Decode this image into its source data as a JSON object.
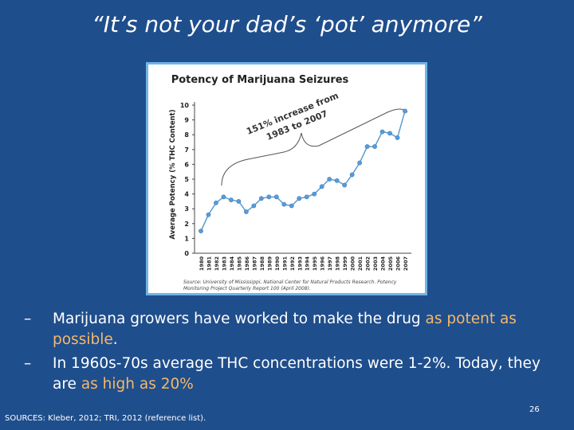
{
  "slide": {
    "title": "“It’s not your dad’s ‘pot’ anymore”",
    "background_color": "#1f4e8c",
    "highlight_color": "#f5b86b"
  },
  "bullets": [
    {
      "dash": "–",
      "text_before": "Marijuana growers have worked to make the drug ",
      "highlight": "as potent as possible",
      "text_after": "."
    },
    {
      "dash": "–",
      "text_before": "In 1960s-70s average THC concentrations were 1-2%. Today, they are ",
      "highlight": "as high as 20%",
      "text_after": ""
    }
  ],
  "footer": {
    "sources": "SOURCES: Kleber, 2012; TRI, 2012 (reference list).",
    "page_number": "26"
  },
  "chart_data": {
    "type": "line",
    "title": "Potency of Marijuana Seizures",
    "ylabel": "Average Potency (% THC Content)",
    "xlabel": "",
    "ylim": [
      0,
      10
    ],
    "yticks": [
      0,
      1,
      2,
      3,
      4,
      5,
      6,
      7,
      8,
      9,
      10
    ],
    "grid": false,
    "line_color": "#5a9bd5",
    "categories": [
      "1980",
      "1981",
      "1982",
      "1983",
      "1984",
      "1985",
      "1986",
      "1987",
      "1988",
      "1989",
      "1990",
      "1991",
      "1992",
      "1993",
      "1994",
      "1995",
      "1996",
      "1997",
      "1998",
      "1999",
      "2000",
      "2001",
      "2002",
      "2003",
      "2004",
      "2005",
      "2006",
      "2007"
    ],
    "values": [
      1.5,
      2.6,
      3.4,
      3.8,
      3.6,
      3.5,
      2.8,
      3.2,
      3.7,
      3.8,
      3.8,
      3.3,
      3.2,
      3.7,
      3.8,
      4.0,
      4.5,
      5.0,
      4.9,
      4.6,
      5.3,
      6.1,
      7.2,
      7.2,
      8.2,
      8.1,
      7.8,
      9.6
    ],
    "annotation": {
      "line1": "151% increase from",
      "line2": "1983 to 2007",
      "from_year": "1983",
      "to_year": "2007"
    },
    "source_line1": "Source: University of Mississippi, National Center for Natural Products Research.  Potency",
    "source_line2": "Monitoring Project Quarterly Report 100 (April 2008)."
  }
}
